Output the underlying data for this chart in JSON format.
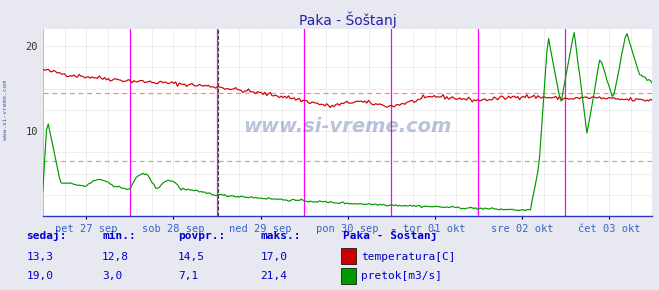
{
  "title": "Paka - Šoštanj",
  "bg_color": "#e8e8f0",
  "plot_bg_color": "#ffffff",
  "grid_color": "#d0d0d0",
  "grid_minor_color": "#e0e0e0",
  "x_labels": [
    "pet 27 sep",
    "sob 28 sep",
    "ned 29 sep",
    "pon 30 sep",
    "tor 01 okt",
    "sre 02 okt",
    "čet 03 okt"
  ],
  "ylim": [
    0,
    22
  ],
  "yticks": [
    10,
    20
  ],
  "temp_color": "#cc0000",
  "flow_color": "#009900",
  "temp_avg": 14.5,
  "flow_avg": 6.5,
  "vline_color": "#ff00ff",
  "hline_temp_color": "#ff8888",
  "hline_flow_color": "#88cc88",
  "watermark": "www.si-vreme.com",
  "sidebar_text": "www.si-vreme.com",
  "n_points": 336,
  "blue": "#0000cc",
  "label_fontsize": 8,
  "title_fontsize": 10,
  "tick_fontsize": 7.5
}
